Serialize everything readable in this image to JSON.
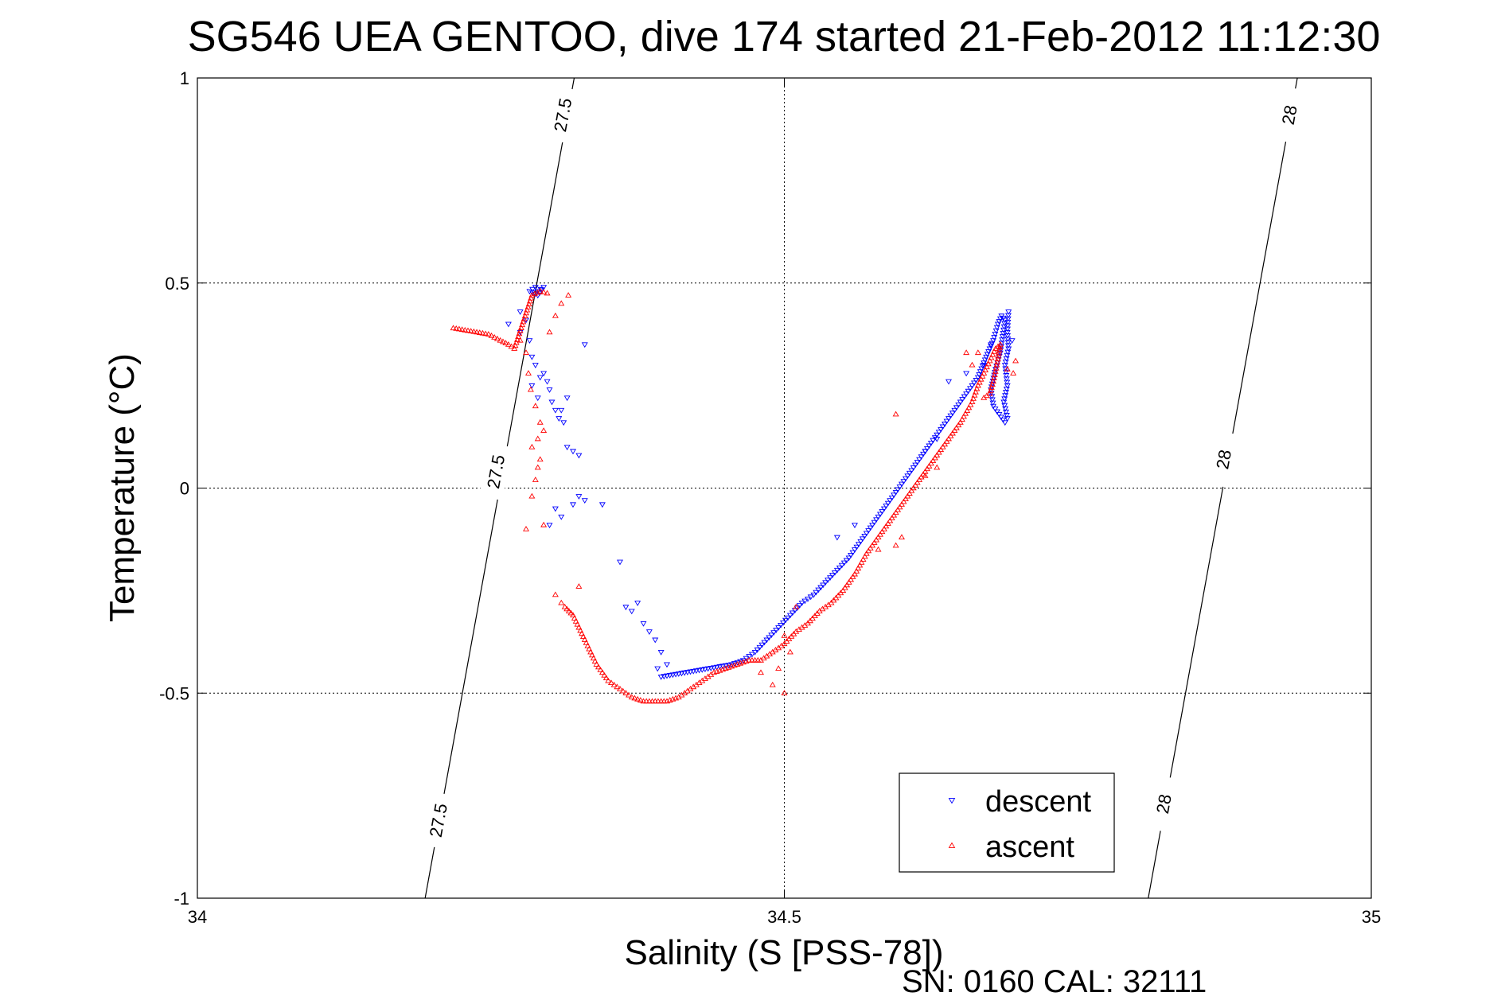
{
  "chart_data": {
    "type": "scatter",
    "title": "SG546 UEA GENTOO, dive 174 started 21-Feb-2012 11:12:30",
    "xlabel": "Salinity (S [PSS-78])",
    "ylabel": "Temperature (°C)",
    "xlim": [
      34,
      35
    ],
    "ylim": [
      -1,
      1
    ],
    "x_ticks": [
      34,
      34.5,
      35
    ],
    "x_tick_labels": [
      "34",
      "34.5",
      "35"
    ],
    "y_ticks": [
      -1,
      -0.5,
      0,
      0.5,
      1
    ],
    "y_tick_labels": [
      "-1",
      "-0.5",
      "0",
      "0.5",
      "1"
    ],
    "grid": true,
    "legend_position": "bottom-right",
    "footer": "SN: 0160  CAL: 32111",
    "contours": [
      {
        "value": 27.5,
        "line": [
          [
            34.194,
            -1.0
          ],
          [
            34.321,
            1.0
          ]
        ],
        "labels": [
          {
            "text": "27.5",
            "x": 34.205,
            "y": -0.81
          },
          {
            "text": "27.5",
            "x": 34.254,
            "y": 0.04
          },
          {
            "text": "27.5",
            "x": 34.311,
            "y": 0.91
          }
        ]
      },
      {
        "value": 28,
        "line": [
          [
            34.81,
            -1.0
          ],
          [
            34.937,
            1.0
          ]
        ],
        "labels": [
          {
            "text": "28",
            "x": 34.823,
            "y": -0.77
          },
          {
            "text": "28",
            "x": 34.874,
            "y": 0.07
          },
          {
            "text": "28",
            "x": 34.93,
            "y": 0.91
          }
        ]
      }
    ],
    "series": [
      {
        "name": "descent",
        "color": "#0000ff",
        "marker": "triangle-down",
        "path_points": [
          [
            34.29,
            0.48
          ],
          [
            34.295,
            0.49
          ],
          [
            34.29,
            0.47
          ],
          [
            34.283,
            0.48
          ],
          [
            34.288,
            0.49
          ],
          [
            34.395,
            -0.46
          ],
          [
            34.405,
            -0.455
          ],
          [
            34.415,
            -0.45
          ],
          [
            34.425,
            -0.445
          ],
          [
            34.435,
            -0.44
          ],
          [
            34.445,
            -0.435
          ],
          [
            34.455,
            -0.43
          ],
          [
            34.465,
            -0.42
          ],
          [
            34.475,
            -0.4
          ],
          [
            34.485,
            -0.37
          ],
          [
            34.495,
            -0.34
          ],
          [
            34.505,
            -0.31
          ],
          [
            34.515,
            -0.28
          ],
          [
            34.525,
            -0.26
          ],
          [
            34.535,
            -0.23
          ],
          [
            34.545,
            -0.2
          ],
          [
            34.555,
            -0.17
          ],
          [
            34.565,
            -0.13
          ],
          [
            34.575,
            -0.09
          ],
          [
            34.585,
            -0.05
          ],
          [
            34.595,
            -0.01
          ],
          [
            34.605,
            0.03
          ],
          [
            34.615,
            0.07
          ],
          [
            34.625,
            0.11
          ],
          [
            34.635,
            0.15
          ],
          [
            34.645,
            0.19
          ],
          [
            34.655,
            0.23
          ],
          [
            34.665,
            0.27
          ],
          [
            34.672,
            0.32
          ],
          [
            34.678,
            0.36
          ],
          [
            34.682,
            0.4
          ],
          [
            34.685,
            0.42
          ],
          [
            34.688,
            0.41
          ],
          [
            34.686,
            0.37
          ],
          [
            34.684,
            0.33
          ],
          [
            34.68,
            0.29
          ],
          [
            34.676,
            0.24
          ],
          [
            34.678,
            0.2
          ],
          [
            34.683,
            0.18
          ],
          [
            34.688,
            0.16
          ],
          [
            34.69,
            0.17
          ],
          [
            34.687,
            0.21
          ],
          [
            34.69,
            0.25
          ],
          [
            34.688,
            0.3
          ],
          [
            34.691,
            0.34
          ],
          [
            34.69,
            0.38
          ],
          [
            34.691,
            0.43
          ]
        ],
        "scatter_points": [
          [
            34.265,
            0.4
          ],
          [
            34.275,
            0.43
          ],
          [
            34.28,
            0.41
          ],
          [
            34.275,
            0.38
          ],
          [
            34.283,
            0.36
          ],
          [
            34.285,
            0.32
          ],
          [
            34.288,
            0.3
          ],
          [
            34.292,
            0.27
          ],
          [
            34.295,
            0.28
          ],
          [
            34.298,
            0.26
          ],
          [
            34.3,
            0.24
          ],
          [
            34.302,
            0.21
          ],
          [
            34.305,
            0.19
          ],
          [
            34.308,
            0.17
          ],
          [
            34.31,
            0.19
          ],
          [
            34.312,
            0.16
          ],
          [
            34.315,
            0.1
          ],
          [
            34.32,
            0.09
          ],
          [
            34.325,
            0.08
          ],
          [
            34.33,
            0.35
          ],
          [
            34.315,
            0.22
          ],
          [
            34.29,
            0.22
          ],
          [
            34.285,
            0.25
          ],
          [
            34.305,
            -0.05
          ],
          [
            34.31,
            -0.07
          ],
          [
            34.32,
            -0.04
          ],
          [
            34.325,
            -0.02
          ],
          [
            34.33,
            -0.03
          ],
          [
            34.345,
            -0.04
          ],
          [
            34.3,
            -0.09
          ],
          [
            34.36,
            -0.18
          ],
          [
            34.365,
            -0.29
          ],
          [
            34.37,
            -0.3
          ],
          [
            34.375,
            -0.28
          ],
          [
            34.38,
            -0.33
          ],
          [
            34.385,
            -0.35
          ],
          [
            34.39,
            -0.37
          ],
          [
            34.395,
            -0.4
          ],
          [
            34.4,
            -0.43
          ],
          [
            34.392,
            -0.44
          ],
          [
            34.64,
            0.26
          ],
          [
            34.655,
            0.28
          ],
          [
            34.67,
            0.3
          ],
          [
            34.676,
            0.35
          ],
          [
            34.694,
            0.36
          ],
          [
            34.63,
            0.12
          ],
          [
            34.62,
            0.09
          ],
          [
            34.56,
            -0.09
          ],
          [
            34.545,
            -0.12
          ]
        ]
      },
      {
        "name": "ascent",
        "color": "#ff0000",
        "marker": "triangle-up",
        "path_points": [
          [
            34.218,
            0.39
          ],
          [
            34.228,
            0.385
          ],
          [
            34.238,
            0.38
          ],
          [
            34.248,
            0.375
          ],
          [
            34.258,
            0.36
          ],
          [
            34.265,
            0.35
          ],
          [
            34.27,
            0.34
          ],
          [
            34.285,
            0.47
          ],
          [
            34.292,
            0.48
          ],
          [
            34.298,
            0.475
          ],
          [
            34.313,
            -0.29
          ],
          [
            34.32,
            -0.31
          ],
          [
            34.325,
            -0.34
          ],
          [
            34.33,
            -0.37
          ],
          [
            34.335,
            -0.4
          ],
          [
            34.34,
            -0.43
          ],
          [
            34.345,
            -0.45
          ],
          [
            34.35,
            -0.47
          ],
          [
            34.355,
            -0.48
          ],
          [
            34.36,
            -0.49
          ],
          [
            34.37,
            -0.51
          ],
          [
            34.38,
            -0.52
          ],
          [
            34.39,
            -0.52
          ],
          [
            34.4,
            -0.52
          ],
          [
            34.41,
            -0.51
          ],
          [
            34.42,
            -0.49
          ],
          [
            34.43,
            -0.47
          ],
          [
            34.44,
            -0.45
          ],
          [
            34.45,
            -0.44
          ],
          [
            34.46,
            -0.43
          ],
          [
            34.47,
            -0.42
          ],
          [
            34.48,
            -0.42
          ],
          [
            34.49,
            -0.4
          ],
          [
            34.5,
            -0.38
          ],
          [
            34.51,
            -0.35
          ],
          [
            34.52,
            -0.33
          ],
          [
            34.53,
            -0.3
          ],
          [
            34.54,
            -0.28
          ],
          [
            34.55,
            -0.25
          ],
          [
            34.56,
            -0.21
          ],
          [
            34.57,
            -0.16
          ],
          [
            34.58,
            -0.12
          ],
          [
            34.59,
            -0.08
          ],
          [
            34.6,
            -0.04
          ],
          [
            34.61,
            0.0
          ],
          [
            34.62,
            0.04
          ],
          [
            34.63,
            0.08
          ],
          [
            34.64,
            0.12
          ],
          [
            34.65,
            0.16
          ],
          [
            34.66,
            0.21
          ],
          [
            34.665,
            0.25
          ],
          [
            34.67,
            0.28
          ],
          [
            34.675,
            0.31
          ],
          [
            34.68,
            0.34
          ],
          [
            34.684,
            0.35
          ],
          [
            34.681,
            0.3
          ],
          [
            34.678,
            0.26
          ],
          [
            34.675,
            0.23
          ],
          [
            34.67,
            0.22
          ]
        ],
        "scatter_points": [
          [
            34.275,
            0.36
          ],
          [
            34.28,
            0.33
          ],
          [
            34.282,
            0.28
          ],
          [
            34.284,
            0.24
          ],
          [
            34.288,
            0.2
          ],
          [
            34.292,
            0.16
          ],
          [
            34.295,
            0.14
          ],
          [
            34.29,
            0.12
          ],
          [
            34.285,
            0.1
          ],
          [
            34.292,
            0.07
          ],
          [
            34.29,
            0.05
          ],
          [
            34.288,
            0.02
          ],
          [
            34.285,
            -0.02
          ],
          [
            34.28,
            -0.1
          ],
          [
            34.295,
            -0.09
          ],
          [
            34.316,
            0.47
          ],
          [
            34.31,
            0.45
          ],
          [
            34.305,
            0.42
          ],
          [
            34.3,
            0.38
          ],
          [
            34.325,
            -0.24
          ],
          [
            34.305,
            -0.26
          ],
          [
            34.31,
            -0.28
          ],
          [
            34.5,
            -0.5
          ],
          [
            34.49,
            -0.48
          ],
          [
            34.48,
            -0.45
          ],
          [
            34.495,
            -0.44
          ],
          [
            34.5,
            -0.36
          ],
          [
            34.505,
            -0.4
          ],
          [
            34.51,
            -0.29
          ],
          [
            34.655,
            0.33
          ],
          [
            34.66,
            0.3
          ],
          [
            34.665,
            0.33
          ],
          [
            34.69,
            0.29
          ],
          [
            34.695,
            0.28
          ],
          [
            34.697,
            0.31
          ],
          [
            34.62,
            0.03
          ],
          [
            34.63,
            0.05
          ],
          [
            34.6,
            -0.12
          ],
          [
            34.595,
            -0.14
          ],
          [
            34.58,
            -0.15
          ],
          [
            34.595,
            0.18
          ]
        ]
      }
    ]
  }
}
